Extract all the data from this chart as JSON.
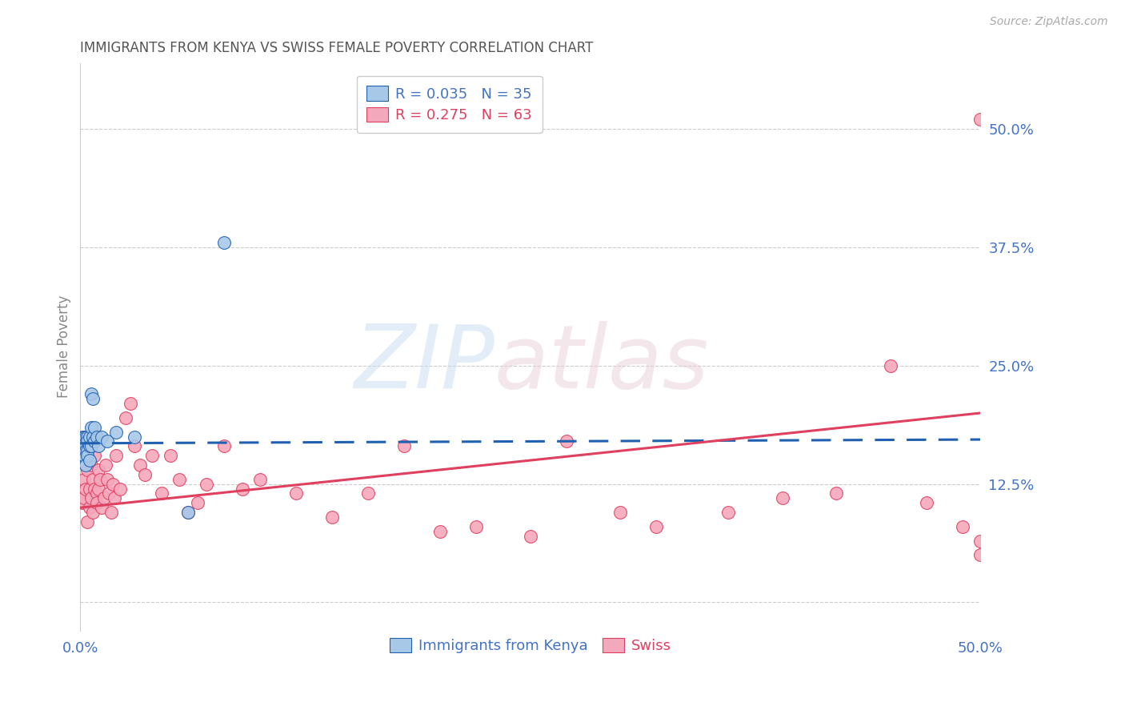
{
  "title": "IMMIGRANTS FROM KENYA VS SWISS FEMALE POVERTY CORRELATION CHART",
  "source": "Source: ZipAtlas.com",
  "ylabel": "Female Poverty",
  "xlim": [
    0.0,
    0.5
  ],
  "ylim": [
    -0.03,
    0.57
  ],
  "kenya_color": "#a8c8e8",
  "swiss_color": "#f4a8bc",
  "kenya_line_color": "#2060b0",
  "swiss_line_color": "#e04060",
  "kenya_R": 0.035,
  "kenya_N": 35,
  "swiss_R": 0.275,
  "swiss_N": 63,
  "kenya_x": [
    0.001,
    0.001,
    0.001,
    0.001,
    0.002,
    0.002,
    0.002,
    0.002,
    0.002,
    0.003,
    0.003,
    0.003,
    0.003,
    0.004,
    0.004,
    0.004,
    0.004,
    0.005,
    0.005,
    0.005,
    0.006,
    0.006,
    0.006,
    0.007,
    0.007,
    0.008,
    0.008,
    0.009,
    0.01,
    0.012,
    0.015,
    0.02,
    0.03,
    0.06,
    0.08
  ],
  "kenya_y": [
    0.165,
    0.17,
    0.155,
    0.175,
    0.16,
    0.175,
    0.165,
    0.155,
    0.17,
    0.165,
    0.175,
    0.16,
    0.145,
    0.175,
    0.16,
    0.17,
    0.155,
    0.165,
    0.175,
    0.15,
    0.22,
    0.185,
    0.165,
    0.175,
    0.215,
    0.17,
    0.185,
    0.175,
    0.165,
    0.175,
    0.17,
    0.18,
    0.175,
    0.095,
    0.38
  ],
  "swiss_x": [
    0.001,
    0.002,
    0.002,
    0.003,
    0.004,
    0.004,
    0.005,
    0.005,
    0.006,
    0.006,
    0.007,
    0.007,
    0.008,
    0.008,
    0.009,
    0.009,
    0.01,
    0.01,
    0.011,
    0.012,
    0.013,
    0.014,
    0.015,
    0.016,
    0.017,
    0.018,
    0.019,
    0.02,
    0.022,
    0.025,
    0.028,
    0.03,
    0.033,
    0.036,
    0.04,
    0.045,
    0.05,
    0.055,
    0.06,
    0.065,
    0.07,
    0.08,
    0.09,
    0.1,
    0.12,
    0.14,
    0.16,
    0.18,
    0.2,
    0.22,
    0.25,
    0.27,
    0.3,
    0.32,
    0.36,
    0.39,
    0.42,
    0.45,
    0.47,
    0.49,
    0.5,
    0.5,
    0.5
  ],
  "swiss_y": [
    0.105,
    0.13,
    0.11,
    0.12,
    0.085,
    0.14,
    0.1,
    0.12,
    0.145,
    0.11,
    0.095,
    0.13,
    0.12,
    0.155,
    0.115,
    0.105,
    0.14,
    0.12,
    0.13,
    0.1,
    0.11,
    0.145,
    0.13,
    0.115,
    0.095,
    0.125,
    0.11,
    0.155,
    0.12,
    0.195,
    0.21,
    0.165,
    0.145,
    0.135,
    0.155,
    0.115,
    0.155,
    0.13,
    0.095,
    0.105,
    0.125,
    0.165,
    0.12,
    0.13,
    0.115,
    0.09,
    0.115,
    0.165,
    0.075,
    0.08,
    0.07,
    0.17,
    0.095,
    0.08,
    0.095,
    0.11,
    0.115,
    0.25,
    0.105,
    0.08,
    0.065,
    0.05,
    0.51
  ],
  "kenya_line_x": [
    0.0,
    0.5
  ],
  "kenya_line_y_start": 0.168,
  "kenya_line_y_end": 0.172,
  "swiss_line_x": [
    0.0,
    0.5
  ],
  "swiss_line_y_start": 0.1,
  "swiss_line_y_end": 0.2
}
